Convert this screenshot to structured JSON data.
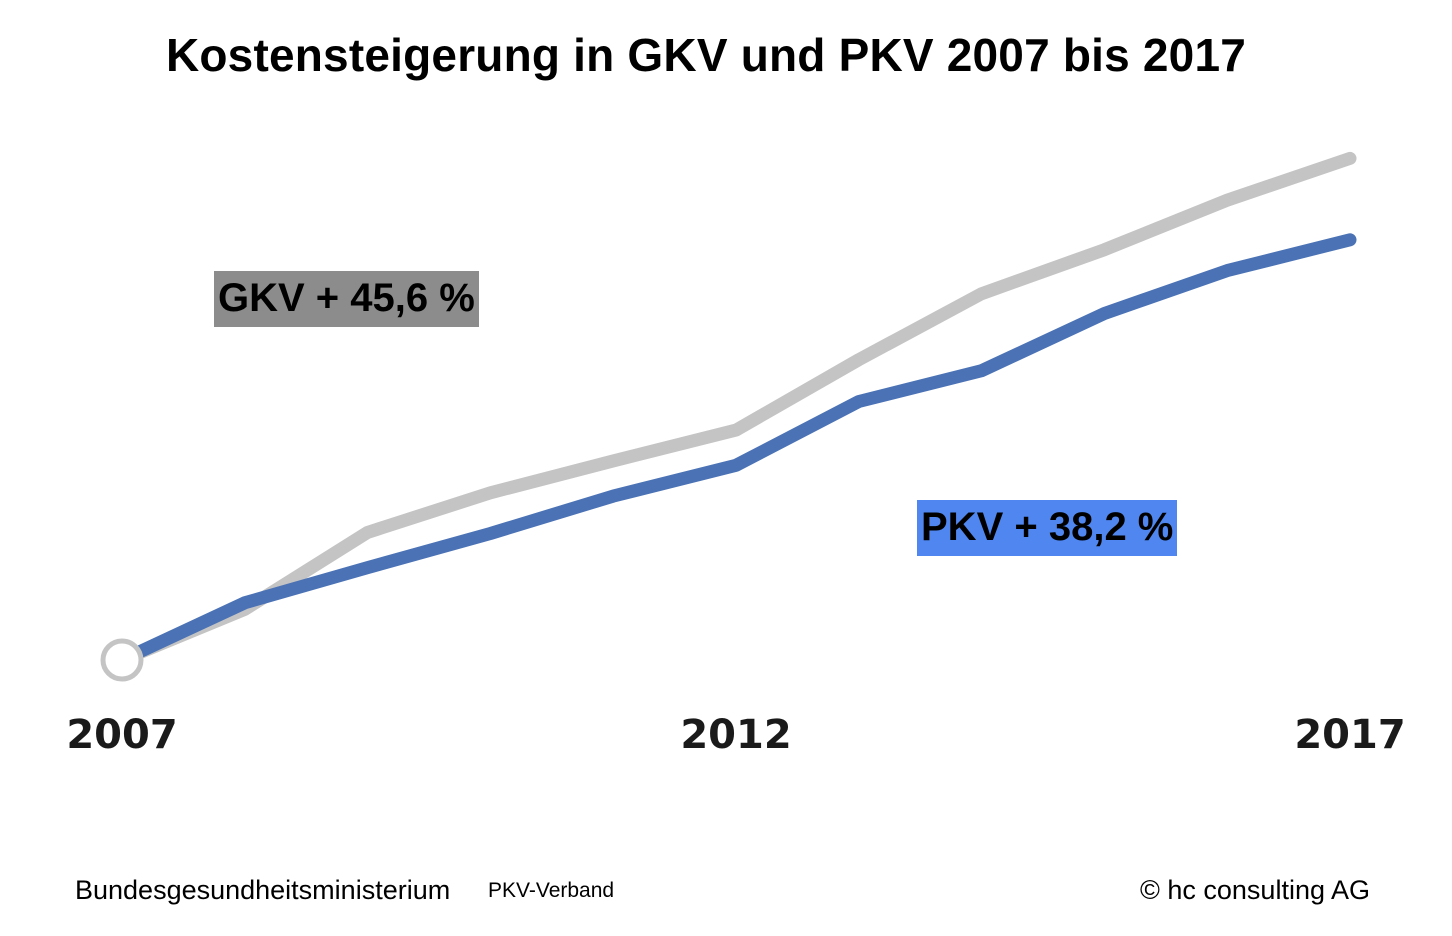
{
  "header": {
    "title": "Kostensteigerung in GKV und PKV 2007 bis 2017"
  },
  "annotations": {
    "gkv": "GKV + 45,6 %",
    "pkv": "PKV + 38,2 %"
  },
  "footer": {
    "source_1": "Bundesgesundheitsministerium",
    "source_2": "PKV-Verband",
    "copyright": "© hc consulting AG"
  },
  "colors": {
    "gkv_line": "#c4c4c4",
    "pkv_line": "#4a72b5",
    "gkv_badge": "#8c8c8c",
    "pkv_badge": "#4f86ef",
    "start_marker_stroke": "#c4c4c4"
  },
  "chart_data": {
    "type": "line",
    "title": "Kostensteigerung in GKV und PKV 2007 bis 2017",
    "xlabel": "",
    "ylabel": "",
    "x": [
      2007,
      2008,
      2009,
      2010,
      2011,
      2012,
      2013,
      2014,
      2015,
      2016,
      2017
    ],
    "x_tick_labels": [
      "2007",
      "2012",
      "2017"
    ],
    "x_ticks": [
      2007,
      2012,
      2017
    ],
    "xlim": [
      2007,
      2017
    ],
    "ylim": [
      0,
      50
    ],
    "y_ticks_shown": false,
    "grid": false,
    "legend": "none",
    "series": [
      {
        "name": "GKV",
        "label": "GKV + 45,6 %",
        "values": [
          0,
          4.6,
          11.6,
          15.2,
          18.1,
          20.9,
          27.3,
          33.3,
          37.3,
          41.8,
          45.6
        ]
      },
      {
        "name": "PKV",
        "label": "PKV + 38,2 %",
        "values": [
          0,
          5.2,
          8.4,
          11.5,
          14.9,
          17.7,
          23.5,
          26.3,
          31.5,
          35.4,
          38.2
        ]
      }
    ],
    "start_marker": {
      "x": 2007,
      "y": 0
    }
  }
}
